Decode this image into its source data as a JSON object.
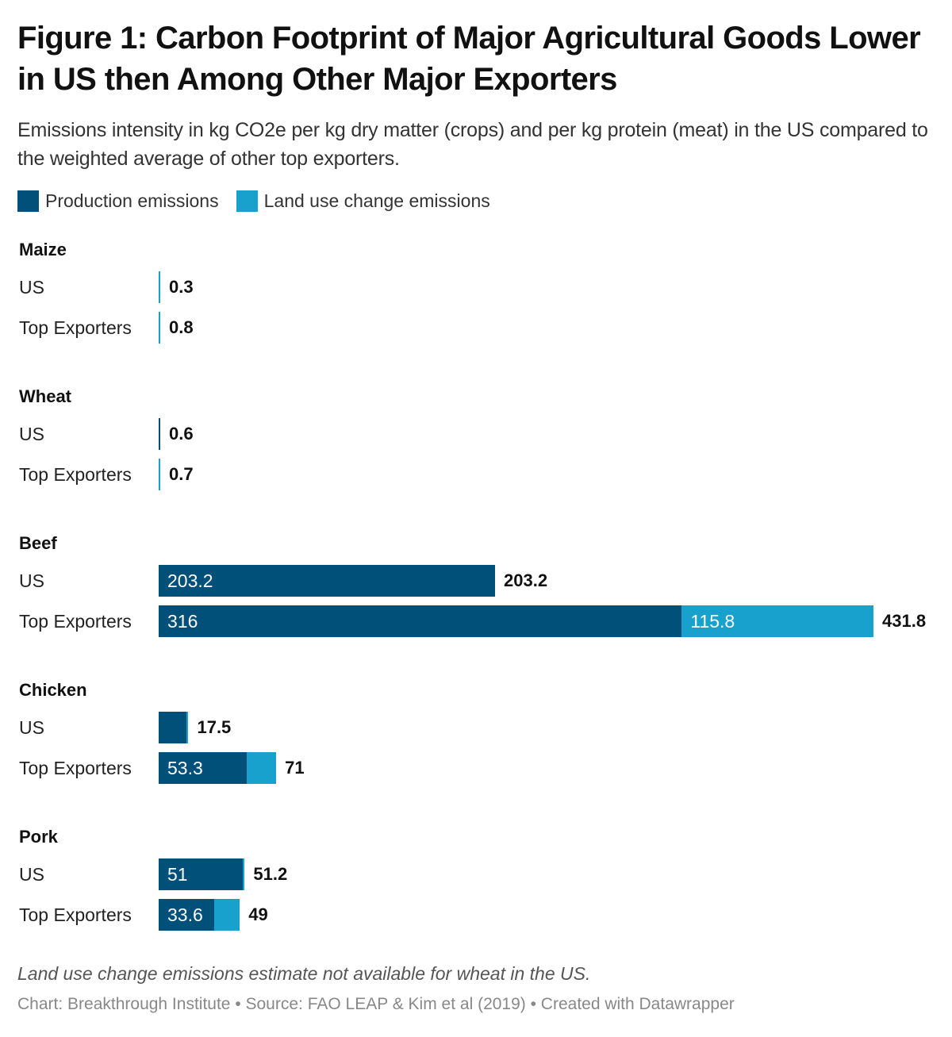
{
  "title": "Figure 1: Carbon Footprint of Major Agricultural Goods Lower in US then Among Other Major Exporters",
  "subtitle": "Emissions intensity in kg CO2e per kg dry matter (crops) and per kg protein (meat) in the US compared to the weighted average of other top exporters.",
  "legend": [
    {
      "label": "Production emissions",
      "color": "#005079"
    },
    {
      "label": "Land use change emissions",
      "color": "#18a1cd"
    }
  ],
  "note": "Land use change emissions estimate not available for wheat in the US.",
  "source": "Chart: Breakthrough Institute • Source: FAO LEAP & Kim et al (2019) • Created with Datawrapper",
  "chart_data": {
    "type": "bar",
    "orientation": "horizontal",
    "stacked": true,
    "title": "Figure 1: Carbon Footprint of Major Agricultural Goods Lower in US then Among Other Major Exporters",
    "xlabel": "",
    "ylabel": "",
    "xlim": [
      0,
      431.8
    ],
    "grid": false,
    "legend_position": "top-left",
    "series_names": [
      "Production emissions",
      "Land use change emissions"
    ],
    "series_colors": [
      "#005079",
      "#18a1cd"
    ],
    "groups": [
      {
        "name": "Maize",
        "rows": [
          {
            "label": "US",
            "production": null,
            "land_use": 0.3,
            "total": "0.3",
            "segment_labels": [
              "",
              ""
            ]
          },
          {
            "label": "Top Exporters",
            "production": null,
            "land_use": 0.8,
            "total": "0.8",
            "segment_labels": [
              "",
              ""
            ]
          }
        ]
      },
      {
        "name": "Wheat",
        "rows": [
          {
            "label": "US",
            "production": 0.6,
            "land_use": null,
            "total": "0.6",
            "segment_labels": [
              "",
              ""
            ]
          },
          {
            "label": "Top Exporters",
            "production": null,
            "land_use": 0.7,
            "total": "0.7",
            "segment_labels": [
              "",
              ""
            ]
          }
        ]
      },
      {
        "name": "Beef",
        "rows": [
          {
            "label": "US",
            "production": 203.2,
            "land_use": 0,
            "total": "203.2",
            "segment_labels": [
              "203.2",
              ""
            ]
          },
          {
            "label": "Top Exporters",
            "production": 316,
            "land_use": 115.8,
            "total": "431.8",
            "segment_labels": [
              "316",
              "115.8"
            ]
          }
        ]
      },
      {
        "name": "Chicken",
        "rows": [
          {
            "label": "US",
            "production": 17.0,
            "land_use": 0.5,
            "total": "17.5",
            "segment_labels": [
              "",
              ""
            ]
          },
          {
            "label": "Top Exporters",
            "production": 53.3,
            "land_use": 17.7,
            "total": "71",
            "segment_labels": [
              "53.3",
              ""
            ]
          }
        ]
      },
      {
        "name": "Pork",
        "rows": [
          {
            "label": "US",
            "production": 51,
            "land_use": 0.2,
            "total": "51.2",
            "segment_labels": [
              "51",
              ""
            ]
          },
          {
            "label": "Top Exporters",
            "production": 33.6,
            "land_use": 15.4,
            "total": "49",
            "segment_labels": [
              "33.6",
              ""
            ]
          }
        ]
      }
    ]
  }
}
